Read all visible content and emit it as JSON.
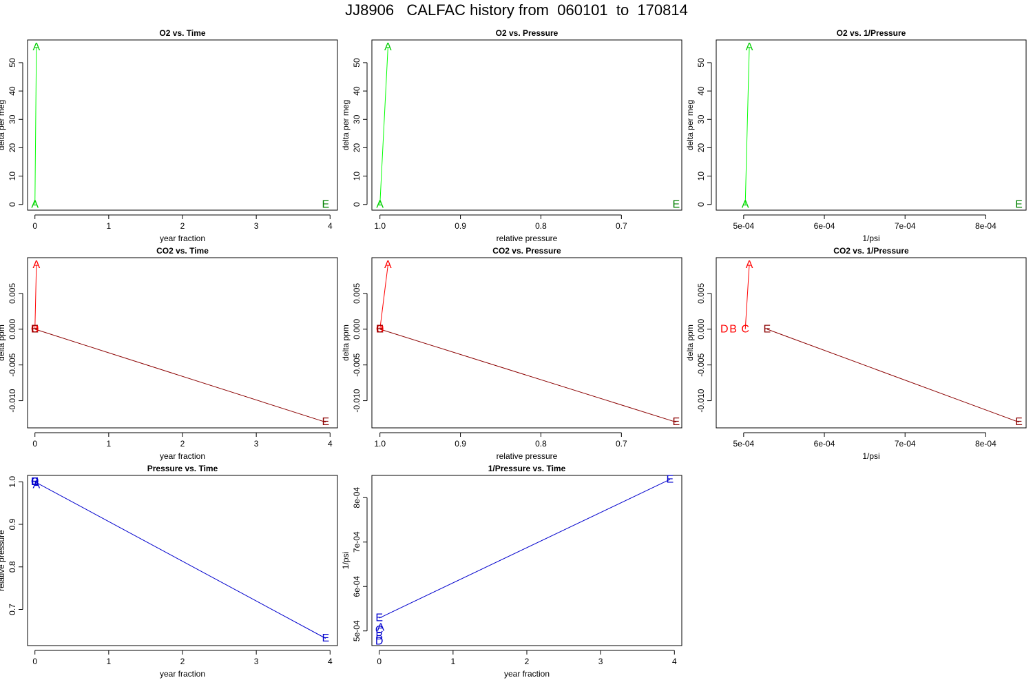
{
  "title": "JJ8906   CALFAC history from  060101  to  170814",
  "colors": {
    "o2_line": "#00ff00",
    "o2_label": "#00cc00",
    "o2_label_e": "#008000",
    "co2_line_a": "#ff0000",
    "co2_label": "#ff0000",
    "co2_line_e": "#8b0000",
    "co2_label_e": "#8b0000",
    "pressure": "#0000cd",
    "axis": "#000000"
  },
  "chart_data": [
    {
      "id": "o2-vs-time",
      "type": "line",
      "title": "O2 vs. Time",
      "xlabel": "year fraction",
      "ylabel": "delta per meg",
      "xlim": [
        -0.1,
        4.1
      ],
      "ylim": [
        -2,
        58
      ],
      "reverse_x": false,
      "xticks": [
        0,
        1,
        2,
        3,
        4
      ],
      "xtick_labels": [
        "0",
        "1",
        "2",
        "3",
        "4"
      ],
      "yticks": [
        0,
        10,
        20,
        30,
        40,
        50
      ],
      "ytick_labels": [
        "0",
        "10",
        "20",
        "30",
        "40",
        "50"
      ],
      "points": [
        {
          "label": "A",
          "x": 0.0,
          "y": 0,
          "color": "#00cc00"
        },
        {
          "label": "A",
          "x": 0.02,
          "y": 55.5,
          "color": "#00cc00"
        },
        {
          "label": "E",
          "x": 3.94,
          "y": 0,
          "color": "#008000"
        }
      ],
      "lines": [
        {
          "from": 0,
          "to": 1,
          "color": "#00ff00"
        }
      ]
    },
    {
      "id": "o2-vs-pressure",
      "type": "line",
      "title": "O2 vs. Pressure",
      "xlabel": "relative pressure",
      "ylabel": "delta per meg",
      "xlim": [
        1.01,
        0.625
      ],
      "ylim": [
        -2,
        58
      ],
      "reverse_x": true,
      "xticks": [
        1.0,
        0.9,
        0.8,
        0.7
      ],
      "xtick_labels": [
        "1.0",
        "0.9",
        "0.8",
        "0.7"
      ],
      "yticks": [
        0,
        10,
        20,
        30,
        40,
        50
      ],
      "ytick_labels": [
        "0",
        "10",
        "20",
        "30",
        "40",
        "50"
      ],
      "points": [
        {
          "label": "A",
          "x": 1.0,
          "y": 0,
          "color": "#00cc00"
        },
        {
          "label": "A",
          "x": 0.99,
          "y": 55.5,
          "color": "#00cc00"
        },
        {
          "label": "E",
          "x": 0.632,
          "y": 0,
          "color": "#008000"
        }
      ],
      "lines": [
        {
          "from": 0,
          "to": 1,
          "color": "#00ff00"
        }
      ]
    },
    {
      "id": "o2-vs-inverse-pressure",
      "type": "line",
      "title": "O2 vs. 1/Pressure",
      "xlabel": "1/psi",
      "ylabel": "delta per meg",
      "xlim": [
        0.000466,
        0.00085
      ],
      "ylim": [
        -2,
        58
      ],
      "reverse_x": false,
      "xticks": [
        0.0005,
        0.0006,
        0.0007,
        0.0008
      ],
      "xtick_labels": [
        "5e-04",
        "6e-04",
        "7e-04",
        "8e-04"
      ],
      "yticks": [
        0,
        10,
        20,
        30,
        40,
        50
      ],
      "ytick_labels": [
        "0",
        "10",
        "20",
        "30",
        "40",
        "50"
      ],
      "points": [
        {
          "label": "A",
          "x": 0.000502,
          "y": 0,
          "color": "#00cc00"
        },
        {
          "label": "A",
          "x": 0.000507,
          "y": 55.5,
          "color": "#00cc00"
        },
        {
          "label": "E",
          "x": 0.000841,
          "y": 0,
          "color": "#008000"
        }
      ],
      "lines": [
        {
          "from": 0,
          "to": 1,
          "color": "#00ff00"
        }
      ]
    },
    {
      "id": "co2-vs-time",
      "type": "line",
      "title": "CO2 vs. Time",
      "xlabel": "year fraction",
      "ylabel": "delta ppm",
      "xlim": [
        -0.1,
        4.1
      ],
      "ylim": [
        -0.0138,
        0.01
      ],
      "reverse_x": false,
      "xticks": [
        0,
        1,
        2,
        3,
        4
      ],
      "xtick_labels": [
        "0",
        "1",
        "2",
        "3",
        "4"
      ],
      "yticks": [
        -0.01,
        -0.005,
        0.0,
        0.005
      ],
      "ytick_labels": [
        "-0.010",
        "-0.005",
        "0.000",
        "0.005"
      ],
      "points": [
        {
          "label": "A",
          "x": 0.02,
          "y": 0.009,
          "color": "#ff0000"
        },
        {
          "label": "D",
          "x": 0.0,
          "y": 0.0,
          "color": "#ff0000"
        },
        {
          "label": "B",
          "x": 0.0,
          "y": 0.0,
          "color": "#ff0000"
        },
        {
          "label": "C",
          "x": 0.0,
          "y": 0.0,
          "color": "#ff0000"
        },
        {
          "label": "E",
          "x": 0.0,
          "y": 0.0,
          "color": "#8b0000"
        },
        {
          "label": "E",
          "x": 3.94,
          "y": -0.013,
          "color": "#8b0000"
        }
      ],
      "lines": [
        {
          "from": 3,
          "to": 0,
          "color": "#ff0000"
        },
        {
          "from": 4,
          "to": 5,
          "color": "#8b0000"
        }
      ]
    },
    {
      "id": "co2-vs-pressure",
      "type": "line",
      "title": "CO2 vs. Pressure",
      "xlabel": "relative pressure",
      "ylabel": "delta ppm",
      "xlim": [
        1.01,
        0.625
      ],
      "ylim": [
        -0.0138,
        0.01
      ],
      "reverse_x": true,
      "xticks": [
        1.0,
        0.9,
        0.8,
        0.7
      ],
      "xtick_labels": [
        "1.0",
        "0.9",
        "0.8",
        "0.7"
      ],
      "yticks": [
        -0.01,
        -0.005,
        0.0,
        0.005
      ],
      "ytick_labels": [
        "-0.010",
        "-0.005",
        "0.000",
        "0.005"
      ],
      "points": [
        {
          "label": "A",
          "x": 0.99,
          "y": 0.009,
          "color": "#ff0000"
        },
        {
          "label": "D",
          "x": 1.0,
          "y": 0.0,
          "color": "#ff0000"
        },
        {
          "label": "B",
          "x": 1.0,
          "y": 0.0,
          "color": "#ff0000"
        },
        {
          "label": "C",
          "x": 1.0,
          "y": 0.0,
          "color": "#ff0000"
        },
        {
          "label": "E",
          "x": 1.0,
          "y": 0.0,
          "color": "#8b0000"
        },
        {
          "label": "E",
          "x": 0.632,
          "y": -0.013,
          "color": "#8b0000"
        }
      ],
      "lines": [
        {
          "from": 3,
          "to": 0,
          "color": "#ff0000"
        },
        {
          "from": 4,
          "to": 5,
          "color": "#8b0000"
        }
      ]
    },
    {
      "id": "co2-vs-inverse-pressure",
      "type": "line",
      "title": "CO2 vs. 1/Pressure",
      "xlabel": "1/psi",
      "ylabel": "delta ppm",
      "xlim": [
        0.000466,
        0.00085
      ],
      "ylim": [
        -0.0138,
        0.01
      ],
      "reverse_x": false,
      "xticks": [
        0.0005,
        0.0006,
        0.0007,
        0.0008
      ],
      "xtick_labels": [
        "5e-04",
        "6e-04",
        "7e-04",
        "8e-04"
      ],
      "yticks": [
        -0.01,
        -0.005,
        0.0,
        0.005
      ],
      "ytick_labels": [
        "-0.010",
        "-0.005",
        "0.000",
        "0.005"
      ],
      "points": [
        {
          "label": "A",
          "x": 0.000507,
          "y": 0.009,
          "color": "#ff0000"
        },
        {
          "label": "D",
          "x": 0.000476,
          "y": 0.0,
          "color": "#ff0000"
        },
        {
          "label": "B",
          "x": 0.000487,
          "y": 0.0,
          "color": "#ff0000"
        },
        {
          "label": "C",
          "x": 0.000502,
          "y": 0.0,
          "color": "#ff0000"
        },
        {
          "label": "E",
          "x": 0.000529,
          "y": 0.0,
          "color": "#8b0000"
        },
        {
          "label": "E",
          "x": 0.000841,
          "y": -0.013,
          "color": "#8b0000"
        }
      ],
      "lines": [
        {
          "from": 3,
          "to": 0,
          "color": "#ff0000"
        },
        {
          "from": 4,
          "to": 5,
          "color": "#8b0000"
        }
      ]
    },
    {
      "id": "pressure-vs-time",
      "type": "line",
      "title": "Pressure vs. Time",
      "xlabel": "year fraction",
      "ylabel": "relative pressure",
      "xlim": [
        -0.1,
        4.1
      ],
      "ylim": [
        0.615,
        1.015
      ],
      "reverse_x": false,
      "xticks": [
        0,
        1,
        2,
        3,
        4
      ],
      "xtick_labels": [
        "0",
        "1",
        "2",
        "3",
        "4"
      ],
      "yticks": [
        0.7,
        0.8,
        0.9,
        1.0
      ],
      "ytick_labels": [
        "0.7",
        "0.8",
        "0.9",
        "1.0"
      ],
      "points": [
        {
          "label": "A",
          "x": 0.02,
          "y": 0.992,
          "color": "#0000cd"
        },
        {
          "label": "D",
          "x": 0.0,
          "y": 1.0,
          "color": "#0000cd"
        },
        {
          "label": "B",
          "x": 0.0,
          "y": 1.0,
          "color": "#0000cd"
        },
        {
          "label": "C",
          "x": 0.0,
          "y": 1.0,
          "color": "#0000cd"
        },
        {
          "label": "E",
          "x": 0.0,
          "y": 1.0,
          "color": "#0000cd"
        },
        {
          "label": "E",
          "x": 3.94,
          "y": 0.632,
          "color": "#0000cd"
        }
      ],
      "lines": [
        {
          "from": 0,
          "to": 4,
          "color": "#0000cd"
        },
        {
          "from": 4,
          "to": 5,
          "color": "#0000cd"
        }
      ]
    },
    {
      "id": "inverse-pressure-vs-time",
      "type": "line",
      "title": "1/Pressure vs. Time",
      "xlabel": "year fraction",
      "ylabel": "1/psi",
      "xlim": [
        -0.1,
        4.1
      ],
      "ylim": [
        0.000467,
        0.00085
      ],
      "reverse_x": false,
      "xticks": [
        0,
        1,
        2,
        3,
        4
      ],
      "xtick_labels": [
        "0",
        "1",
        "2",
        "3",
        "4"
      ],
      "yticks": [
        0.0005,
        0.0006,
        0.0007,
        0.0008
      ],
      "ytick_labels": [
        "5e-04",
        "6e-04",
        "7e-04",
        "8e-04"
      ],
      "points": [
        {
          "label": "E",
          "x": 0.0,
          "y": 0.000529,
          "color": "#0000cd"
        },
        {
          "label": "A",
          "x": 0.02,
          "y": 0.000507,
          "color": "#0000cd"
        },
        {
          "label": "C",
          "x": 0.0,
          "y": 0.000502,
          "color": "#0000cd"
        },
        {
          "label": "B",
          "x": 0.0,
          "y": 0.000488,
          "color": "#0000cd"
        },
        {
          "label": "D",
          "x": 0.0,
          "y": 0.000476,
          "color": "#0000cd"
        },
        {
          "label": "E",
          "x": 3.94,
          "y": 0.000841,
          "color": "#0000cd"
        }
      ],
      "lines": [
        {
          "from": 0,
          "to": 5,
          "color": "#0000cd"
        }
      ]
    }
  ]
}
